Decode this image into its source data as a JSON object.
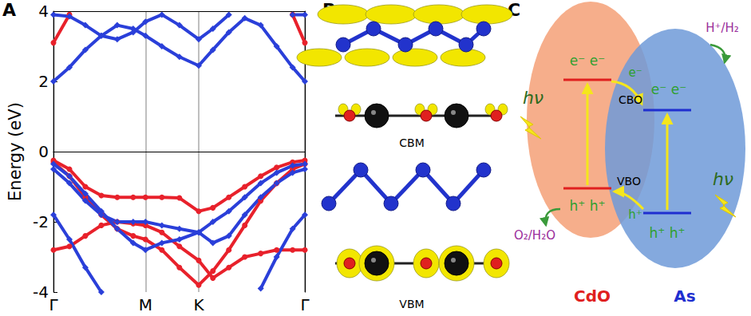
{
  "panel_labels": [
    "A",
    "B",
    "C"
  ],
  "chart_data": {
    "type": "line",
    "ylabel": "Energy (eV)",
    "xlim": [
      0,
      1.577
    ],
    "xticks": [
      {
        "value": 0,
        "label": "Γ"
      },
      {
        "value": 0.577,
        "label": "M"
      },
      {
        "value": 0.911,
        "label": "K"
      },
      {
        "value": 1.577,
        "label": "Γ"
      }
    ],
    "ylim": [
      -4,
      4
    ],
    "yticks": [
      -4,
      -2,
      0,
      2,
      4
    ],
    "grid": "x",
    "x": [
      0,
      0.1,
      0.2,
      0.3,
      0.4,
      0.5,
      0.577,
      0.68,
      0.79,
      0.911,
      1.0,
      1.1,
      1.2,
      1.3,
      1.4,
      1.5,
      1.577
    ],
    "series": [
      {
        "color": "#e8212b",
        "marker": "circle",
        "values": [
          -2.8,
          -2.7,
          -2.4,
          -2.1,
          -2.0,
          -2.05,
          -2.1,
          -2.3,
          -2.7,
          -3.1,
          -3.6,
          -3.3,
          -3.0,
          -2.9,
          -2.8,
          -2.8,
          -2.8
        ]
      },
      {
        "color": "#e8212b",
        "marker": "circle",
        "values": [
          -0.3,
          -0.7,
          -1.3,
          -1.8,
          -2.2,
          -2.4,
          -2.5,
          -2.8,
          -3.3,
          -3.8,
          -3.4,
          -2.8,
          -2.1,
          -1.4,
          -0.9,
          -0.5,
          -0.35
        ]
      },
      {
        "color": "#e8212b",
        "marker": "circle",
        "values": [
          -0.25,
          -0.5,
          -1.0,
          -1.25,
          -1.3,
          -1.3,
          -1.3,
          -1.3,
          -1.32,
          -1.7,
          -1.6,
          -1.3,
          -1.0,
          -0.7,
          -0.45,
          -0.3,
          -0.25
        ]
      },
      {
        "color": "#e8212b",
        "marker": "circle",
        "values": [
          3.1,
          3.9,
          null,
          null,
          null,
          null,
          null,
          null,
          null,
          null,
          null,
          null,
          null,
          null,
          null,
          3.9,
          3.1
        ]
      },
      {
        "color": "#2a3fd9",
        "marker": "diamond",
        "values": [
          2.0,
          2.4,
          2.9,
          3.3,
          3.6,
          3.5,
          3.3,
          3.0,
          2.7,
          2.45,
          2.9,
          3.4,
          3.8,
          3.6,
          3.0,
          2.4,
          2.0
        ]
      },
      {
        "color": "#2a3fd9",
        "marker": "diamond",
        "values": [
          3.9,
          3.85,
          3.6,
          3.3,
          3.2,
          3.4,
          3.7,
          3.9,
          3.6,
          3.2,
          3.5,
          3.9,
          null,
          null,
          null,
          3.9,
          3.9
        ]
      },
      {
        "color": "#2a3fd9",
        "marker": "diamond",
        "values": [
          -0.35,
          -0.7,
          -1.2,
          -1.7,
          -2.2,
          -2.6,
          -2.8,
          -2.6,
          -2.5,
          -2.3,
          -2.0,
          -1.7,
          -1.3,
          -0.9,
          -0.6,
          -0.4,
          -0.35
        ]
      },
      {
        "color": "#2a3fd9",
        "marker": "diamond",
        "values": [
          -0.5,
          -0.9,
          -1.4,
          -1.8,
          -2.0,
          -2.0,
          -2.0,
          -2.1,
          -2.2,
          -2.3,
          -2.6,
          -2.4,
          -1.8,
          -1.3,
          -0.9,
          -0.6,
          -0.5
        ]
      },
      {
        "color": "#2a3fd9",
        "marker": "diamond",
        "values": [
          -1.8,
          -2.5,
          -3.3,
          -4.0,
          null,
          null,
          null,
          null,
          null,
          null,
          null,
          null,
          null,
          -3.9,
          -3.0,
          -2.2,
          -1.8
        ]
      }
    ]
  },
  "panel_b": {
    "labels": [
      "CBM",
      "VBM"
    ]
  },
  "panel_c": {
    "materials": [
      {
        "label": "CdO",
        "electrons": "e⁻ e⁻",
        "holes": "h⁺ h⁺",
        "light": "hν",
        "reaction": "O₂/H₂O"
      },
      {
        "label": "As",
        "electrons": "e⁻ e⁻",
        "holes": "h⁺ h⁺",
        "light": "hν",
        "reaction": "H⁺/H₂"
      }
    ],
    "offsets": [
      "CBO",
      "VBO"
    ],
    "transfer": [
      "e⁻",
      "h⁺"
    ]
  }
}
